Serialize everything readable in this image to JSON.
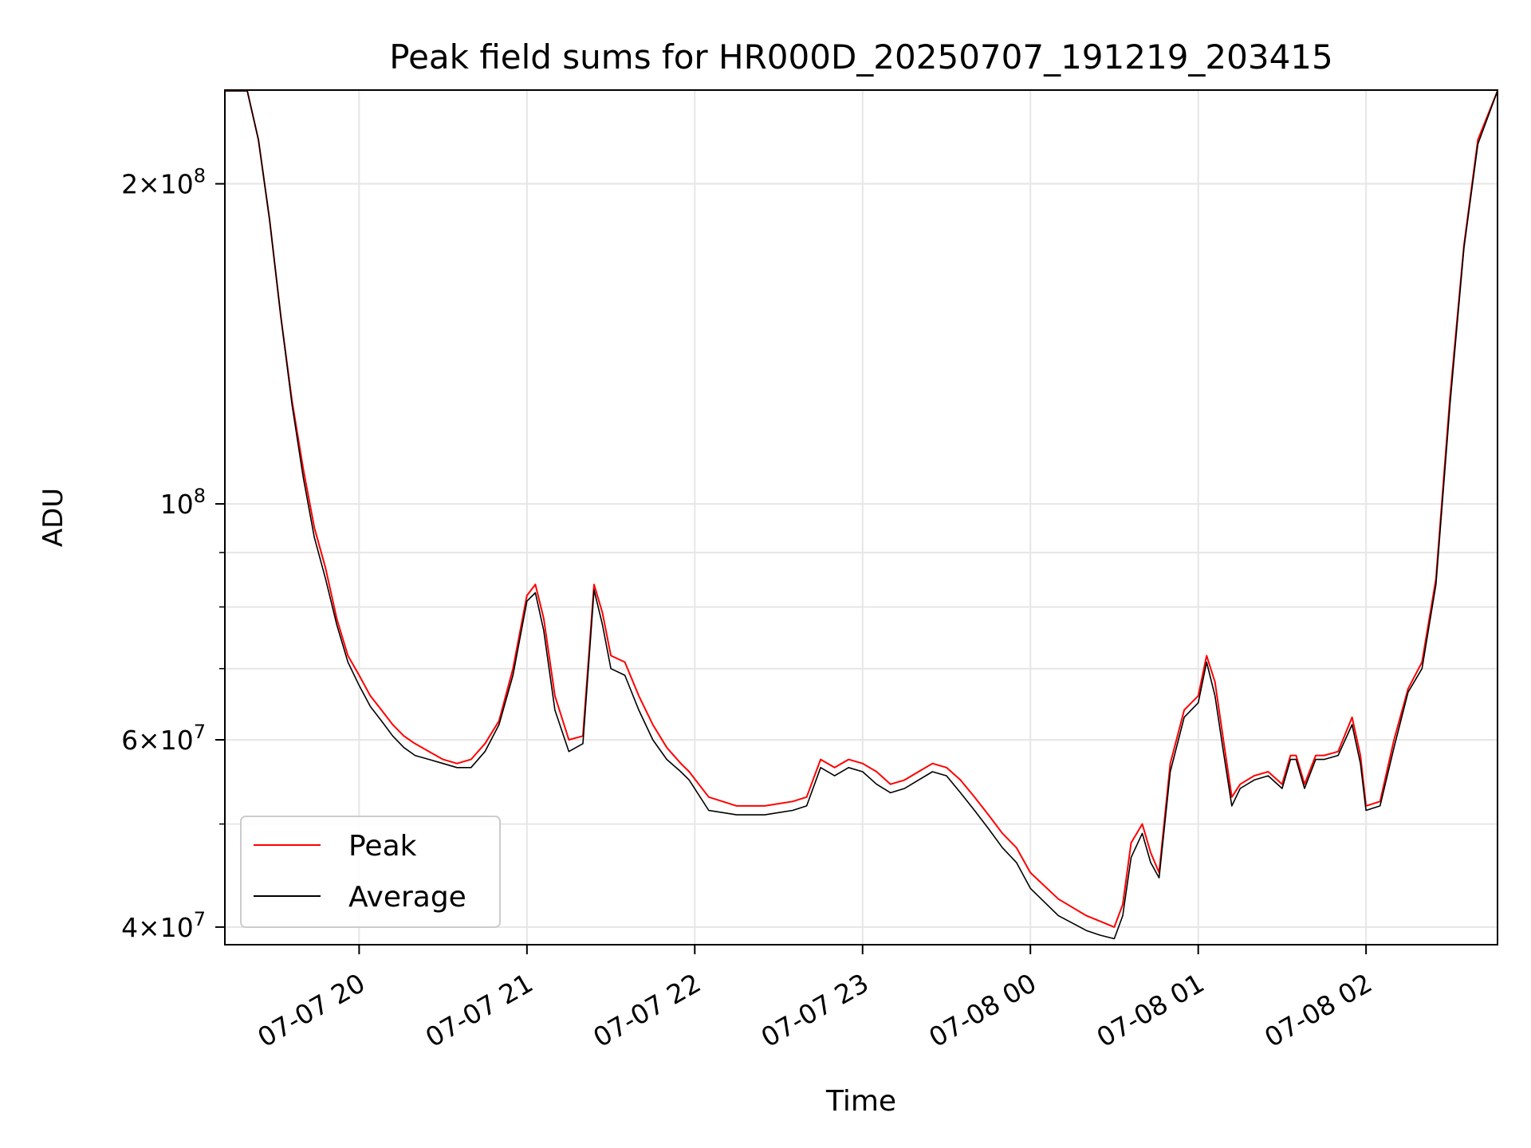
{
  "chart_data": {
    "type": "line",
    "title": "Peak field sums for HR000D_20250707_191219_203415",
    "xlabel": "Time",
    "ylabel": "ADU",
    "y_scale": "log",
    "ylim": [
      38500000,
      245000000
    ],
    "xlim": [
      "2025-07-07 19:12",
      "2025-07-08 02:47"
    ],
    "grid": true,
    "legend_position": "lower-left",
    "x_ticks": [
      {
        "label": "07-07 20",
        "value": "2025-07-07 20:00"
      },
      {
        "label": "07-07 21",
        "value": "2025-07-07 21:00"
      },
      {
        "label": "07-07 22",
        "value": "2025-07-07 22:00"
      },
      {
        "label": "07-07 23",
        "value": "2025-07-07 23:00"
      },
      {
        "label": "07-08 00",
        "value": "2025-07-08 00:00"
      },
      {
        "label": "07-08 01",
        "value": "2025-07-08 01:00"
      },
      {
        "label": "07-08 02",
        "value": "2025-07-08 02:00"
      }
    ],
    "y_major_ticks": [
      {
        "base": "4",
        "exp": "7",
        "value": 40000000
      },
      {
        "base": "6",
        "exp": "7",
        "value": 60000000
      },
      {
        "base": "",
        "exp": "8",
        "value": 100000000
      },
      {
        "base": "2",
        "exp": "8",
        "value": 200000000
      }
    ],
    "y_minor_ticks": [
      50000000,
      70000000,
      80000000,
      90000000
    ],
    "series": [
      {
        "name": "Peak",
        "color": "#ff0000",
        "x": [
          "2025-07-07 19:12",
          "2025-07-07 19:20",
          "2025-07-07 19:24",
          "2025-07-07 19:28",
          "2025-07-07 19:32",
          "2025-07-07 19:36",
          "2025-07-07 19:40",
          "2025-07-07 19:44",
          "2025-07-07 19:48",
          "2025-07-07 19:52",
          "2025-07-07 19:56",
          "2025-07-07 20:00",
          "2025-07-07 20:04",
          "2025-07-07 20:08",
          "2025-07-07 20:12",
          "2025-07-07 20:16",
          "2025-07-07 20:20",
          "2025-07-07 20:25",
          "2025-07-07 20:30",
          "2025-07-07 20:35",
          "2025-07-07 20:40",
          "2025-07-07 20:45",
          "2025-07-07 20:50",
          "2025-07-07 20:55",
          "2025-07-07 21:00",
          "2025-07-07 21:03",
          "2025-07-07 21:06",
          "2025-07-07 21:10",
          "2025-07-07 21:15",
          "2025-07-07 21:20",
          "2025-07-07 21:24",
          "2025-07-07 21:27",
          "2025-07-07 21:30",
          "2025-07-07 21:35",
          "2025-07-07 21:40",
          "2025-07-07 21:45",
          "2025-07-07 21:50",
          "2025-07-07 21:55",
          "2025-07-07 21:58",
          "2025-07-07 22:05",
          "2025-07-07 22:15",
          "2025-07-07 22:25",
          "2025-07-07 22:35",
          "2025-07-07 22:40",
          "2025-07-07 22:45",
          "2025-07-07 22:50",
          "2025-07-07 22:55",
          "2025-07-07 23:00",
          "2025-07-07 23:05",
          "2025-07-07 23:10",
          "2025-07-07 23:15",
          "2025-07-07 23:20",
          "2025-07-07 23:25",
          "2025-07-07 23:30",
          "2025-07-07 23:35",
          "2025-07-07 23:40",
          "2025-07-07 23:45",
          "2025-07-07 23:50",
          "2025-07-07 23:55",
          "2025-07-08 00:00",
          "2025-07-08 00:10",
          "2025-07-08 00:20",
          "2025-07-08 00:25",
          "2025-07-08 00:30",
          "2025-07-08 00:33",
          "2025-07-08 00:36",
          "2025-07-08 00:40",
          "2025-07-08 00:43",
          "2025-07-08 00:46",
          "2025-07-08 00:50",
          "2025-07-08 00:55",
          "2025-07-08 01:00",
          "2025-07-08 01:03",
          "2025-07-08 01:06",
          "2025-07-08 01:09",
          "2025-07-08 01:12",
          "2025-07-08 01:15",
          "2025-07-08 01:20",
          "2025-07-08 01:25",
          "2025-07-08 01:30",
          "2025-07-08 01:33",
          "2025-07-08 01:35",
          "2025-07-08 01:38",
          "2025-07-08 01:42",
          "2025-07-08 01:45",
          "2025-07-08 01:50",
          "2025-07-08 01:55",
          "2025-07-08 01:58",
          "2025-07-08 02:00",
          "2025-07-08 02:05",
          "2025-07-08 02:10",
          "2025-07-08 02:15",
          "2025-07-08 02:20",
          "2025-07-08 02:25",
          "2025-07-08 02:30",
          "2025-07-08 02:35",
          "2025-07-08 02:40",
          "2025-07-08 02:47"
        ],
        "y": [
          245000000,
          245000000,
          220000000,
          185000000,
          150000000,
          125000000,
          108000000,
          95000000,
          87000000,
          78000000,
          72000000,
          69000000,
          66000000,
          64000000,
          62000000,
          60500000,
          59500000,
          58500000,
          57500000,
          57000000,
          57500000,
          59500000,
          62500000,
          70000000,
          82000000,
          84000000,
          78000000,
          66000000,
          60000000,
          60500000,
          84000000,
          79000000,
          72000000,
          71000000,
          66000000,
          62000000,
          59000000,
          57000000,
          56000000,
          53000000,
          52000000,
          52000000,
          52500000,
          53000000,
          57500000,
          56500000,
          57500000,
          57000000,
          56000000,
          54500000,
          55000000,
          56000000,
          57000000,
          56500000,
          55000000,
          53000000,
          51000000,
          49000000,
          47500000,
          45000000,
          42500000,
          41000000,
          40500000,
          40000000,
          42000000,
          48000000,
          50000000,
          47000000,
          45000000,
          57000000,
          64000000,
          66000000,
          72000000,
          68000000,
          60000000,
          53000000,
          54500000,
          55500000,
          56000000,
          54500000,
          58000000,
          58000000,
          54500000,
          58000000,
          58000000,
          58500000,
          63000000,
          58000000,
          52000000,
          52500000,
          60000000,
          67000000,
          71000000,
          85000000,
          126000000,
          175000000,
          220000000,
          245000000
        ]
      },
      {
        "name": "Average",
        "color": "#000000",
        "x": [
          "2025-07-07 19:12",
          "2025-07-07 19:20",
          "2025-07-07 19:24",
          "2025-07-07 19:28",
          "2025-07-07 19:32",
          "2025-07-07 19:36",
          "2025-07-07 19:40",
          "2025-07-07 19:44",
          "2025-07-07 19:48",
          "2025-07-07 19:52",
          "2025-07-07 19:56",
          "2025-07-07 20:00",
          "2025-07-07 20:04",
          "2025-07-07 20:08",
          "2025-07-07 20:12",
          "2025-07-07 20:16",
          "2025-07-07 20:20",
          "2025-07-07 20:25",
          "2025-07-07 20:30",
          "2025-07-07 20:35",
          "2025-07-07 20:40",
          "2025-07-07 20:45",
          "2025-07-07 20:50",
          "2025-07-07 20:55",
          "2025-07-07 21:00",
          "2025-07-07 21:03",
          "2025-07-07 21:06",
          "2025-07-07 21:10",
          "2025-07-07 21:15",
          "2025-07-07 21:20",
          "2025-07-07 21:24",
          "2025-07-07 21:27",
          "2025-07-07 21:30",
          "2025-07-07 21:35",
          "2025-07-07 21:40",
          "2025-07-07 21:45",
          "2025-07-07 21:50",
          "2025-07-07 21:55",
          "2025-07-07 21:58",
          "2025-07-07 22:05",
          "2025-07-07 22:15",
          "2025-07-07 22:25",
          "2025-07-07 22:35",
          "2025-07-07 22:40",
          "2025-07-07 22:45",
          "2025-07-07 22:50",
          "2025-07-07 22:55",
          "2025-07-07 23:00",
          "2025-07-07 23:05",
          "2025-07-07 23:10",
          "2025-07-07 23:15",
          "2025-07-07 23:20",
          "2025-07-07 23:25",
          "2025-07-07 23:30",
          "2025-07-07 23:35",
          "2025-07-07 23:40",
          "2025-07-07 23:45",
          "2025-07-07 23:50",
          "2025-07-07 23:55",
          "2025-07-08 00:00",
          "2025-07-08 00:10",
          "2025-07-08 00:20",
          "2025-07-08 00:25",
          "2025-07-08 00:30",
          "2025-07-08 00:33",
          "2025-07-08 00:36",
          "2025-07-08 00:40",
          "2025-07-08 00:43",
          "2025-07-08 00:46",
          "2025-07-08 00:50",
          "2025-07-08 00:55",
          "2025-07-08 01:00",
          "2025-07-08 01:03",
          "2025-07-08 01:06",
          "2025-07-08 01:09",
          "2025-07-08 01:12",
          "2025-07-08 01:15",
          "2025-07-08 01:20",
          "2025-07-08 01:25",
          "2025-07-08 01:30",
          "2025-07-08 01:33",
          "2025-07-08 01:35",
          "2025-07-08 01:38",
          "2025-07-08 01:42",
          "2025-07-08 01:45",
          "2025-07-08 01:50",
          "2025-07-08 01:55",
          "2025-07-08 01:58",
          "2025-07-08 02:00",
          "2025-07-08 02:05",
          "2025-07-08 02:10",
          "2025-07-08 02:15",
          "2025-07-08 02:20",
          "2025-07-08 02:25",
          "2025-07-08 02:30",
          "2025-07-08 02:35",
          "2025-07-08 02:40",
          "2025-07-08 02:47"
        ],
        "y": [
          245000000,
          245000000,
          220000000,
          185000000,
          150000000,
          124000000,
          106000000,
          93000000,
          85000000,
          77000000,
          71000000,
          67500000,
          64500000,
          62500000,
          60500000,
          59000000,
          58000000,
          57500000,
          57000000,
          56500000,
          56500000,
          58500000,
          62000000,
          69000000,
          81000000,
          82500000,
          76000000,
          64000000,
          58500000,
          59500000,
          83000000,
          77000000,
          70000000,
          69000000,
          64000000,
          60000000,
          57500000,
          56000000,
          55000000,
          51500000,
          51000000,
          51000000,
          51500000,
          52000000,
          56500000,
          55500000,
          56500000,
          56000000,
          54500000,
          53500000,
          54000000,
          55000000,
          56000000,
          55500000,
          53500000,
          51500000,
          49500000,
          47500000,
          46000000,
          43500000,
          41000000,
          39700000,
          39300000,
          39000000,
          41000000,
          46500000,
          49000000,
          46000000,
          44500000,
          56000000,
          63000000,
          65000000,
          71000000,
          66000000,
          58500000,
          52000000,
          54000000,
          55000000,
          55500000,
          54000000,
          57500000,
          57500000,
          54000000,
          57500000,
          57500000,
          58000000,
          62000000,
          57000000,
          51500000,
          52000000,
          59000000,
          66500000,
          70000000,
          84000000,
          124000000,
          174000000,
          218000000,
          245000000
        ]
      }
    ]
  }
}
